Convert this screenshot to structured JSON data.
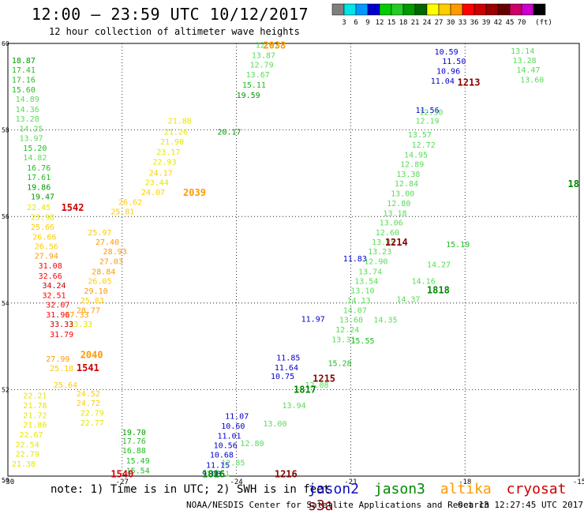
{
  "header": {
    "title": "12:00 – 23:59 UTC 10/12/2017",
    "subtitle": "12 hour collection of altimeter wave heights"
  },
  "colorbar": {
    "colors": [
      "#7f7f7f",
      "#00e5e5",
      "#0099ff",
      "#0000cc",
      "#00cc00",
      "#22cc22",
      "#009900",
      "#006600",
      "#ffff00",
      "#ffcc00",
      "#ff9900",
      "#ff0000",
      "#cc0000",
      "#990000",
      "#660000",
      "#cc0066",
      "#cc00cc",
      "#000000"
    ],
    "labels": [
      "3",
      "6",
      "9",
      "12",
      "15",
      "18",
      "21",
      "24",
      "27",
      "30",
      "33",
      "36",
      "39",
      "42",
      "45",
      "70"
    ],
    "unit": "(ft)"
  },
  "footer": {
    "note": "note: 1) Time is in UTC; 2) SWH is in feet",
    "credit": "NOAA/NESDIS Center for Satellite Applications and Research",
    "timestamp": "Oct 13 12:27:45 UTC 2017"
  },
  "legend": [
    {
      "name": "jason2",
      "color": "#1010c0"
    },
    {
      "name": "jason3",
      "color": "#008800"
    },
    {
      "name": "altika",
      "color": "#ff9900"
    },
    {
      "name": "cryosat",
      "color": "#cc0000"
    },
    {
      "name": "s3a",
      "color": "#880000"
    }
  ],
  "chart_data": {
    "type": "scatter",
    "title": "12:00 – 23:59 UTC 10/12/2017",
    "subtitle": "12 hour collection of altimeter wave heights",
    "xlim": [
      -30,
      -15
    ],
    "ylim": [
      50,
      60
    ],
    "xticks": [
      "-30",
      "-27",
      "-24",
      "-21",
      "-18",
      "-15"
    ],
    "yticks": [
      "50",
      "52",
      "54",
      "56",
      "58",
      "60"
    ],
    "grid": true,
    "series": [
      {
        "name": "jason2",
        "color": "#1010c0",
        "points": [
          {
            "x": -24.9,
            "y": 50.05,
            "v": "9.08"
          },
          {
            "x": -24.8,
            "y": 50.25,
            "v": "11.15"
          },
          {
            "x": -24.7,
            "y": 50.48,
            "v": "10.68"
          },
          {
            "x": -24.6,
            "y": 50.7,
            "v": "10.56"
          },
          {
            "x": -24.5,
            "y": 50.92,
            "v": "11.01"
          },
          {
            "x": -24.4,
            "y": 51.15,
            "v": "10.60"
          },
          {
            "x": -24.3,
            "y": 51.38,
            "v": "11.07"
          },
          {
            "x": -23.1,
            "y": 52.3,
            "v": "10.75"
          },
          {
            "x": -23.0,
            "y": 52.5,
            "v": "11.64"
          },
          {
            "x": -22.95,
            "y": 52.73,
            "v": "11.85"
          },
          {
            "x": -22.3,
            "y": 53.62,
            "v": "11.97"
          },
          {
            "x": -21.2,
            "y": 55.02,
            "v": "11.83"
          },
          {
            "x": -18.8,
            "y": 59.8,
            "v": "10.59"
          },
          {
            "x": -18.6,
            "y": 59.58,
            "v": "11.50"
          },
          {
            "x": -18.75,
            "y": 59.35,
            "v": "10.96"
          },
          {
            "x": -18.9,
            "y": 59.12,
            "v": "11.04"
          },
          {
            "x": -19.3,
            "y": 58.45,
            "v": "11.56"
          }
        ]
      },
      {
        "name": "jason3",
        "color": "#22cc22",
        "points": [
          {
            "x": -29.9,
            "y": 59.6,
            "v": "18.87"
          },
          {
            "x": -29.9,
            "y": 59.38,
            "v": "17.41"
          },
          {
            "x": -29.9,
            "y": 59.15,
            "v": "17.16"
          },
          {
            "x": -29.9,
            "y": 58.92,
            "v": "15.60"
          },
          {
            "x": -29.8,
            "y": 58.7,
            "v": "14.89"
          },
          {
            "x": -29.8,
            "y": 58.47,
            "v": "14.36"
          },
          {
            "x": -29.8,
            "y": 58.25,
            "v": "13.28"
          },
          {
            "x": -29.7,
            "y": 58.02,
            "v": "14.25"
          },
          {
            "x": -29.7,
            "y": 57.8,
            "v": "13.97"
          },
          {
            "x": -29.6,
            "y": 57.57,
            "v": "15.20"
          },
          {
            "x": -29.6,
            "y": 57.35,
            "v": "14.82"
          },
          {
            "x": -29.5,
            "y": 57.12,
            "v": "16.76"
          },
          {
            "x": -29.5,
            "y": 56.9,
            "v": "17.61"
          },
          {
            "x": -29.5,
            "y": 56.67,
            "v": "19.86"
          },
          {
            "x": -29.4,
            "y": 56.45,
            "v": "19.47"
          },
          {
            "x": -23.5,
            "y": 59.95,
            "v": "12.97"
          },
          {
            "x": -23.6,
            "y": 59.72,
            "v": "13.87"
          },
          {
            "x": -23.65,
            "y": 59.5,
            "v": "12.79"
          },
          {
            "x": -23.75,
            "y": 59.27,
            "v": "13.67"
          },
          {
            "x": -23.85,
            "y": 59.03,
            "v": "15.11"
          },
          {
            "x": -24.0,
            "y": 58.8,
            "v": "19.59"
          },
          {
            "x": -24.5,
            "y": 57.95,
            "v": "20.17"
          },
          {
            "x": -27.0,
            "y": 51.0,
            "v": "19.70"
          },
          {
            "x": -27.0,
            "y": 50.8,
            "v": "17.76"
          },
          {
            "x": -27.0,
            "y": 50.58,
            "v": "16.88"
          },
          {
            "x": -26.9,
            "y": 50.35,
            "v": "15.49"
          },
          {
            "x": -26.9,
            "y": 50.12,
            "v": "15.54"
          },
          {
            "x": -19.5,
            "y": 57.88,
            "v": "13.57"
          },
          {
            "x": -19.4,
            "y": 57.65,
            "v": "12.72"
          },
          {
            "x": -19.3,
            "y": 58.2,
            "v": "12.19"
          },
          {
            "x": -19.2,
            "y": 58.4,
            "v": "12.30"
          },
          {
            "x": -19.6,
            "y": 57.42,
            "v": "14.95"
          },
          {
            "x": -19.7,
            "y": 57.2,
            "v": "12.89"
          },
          {
            "x": -19.8,
            "y": 56.97,
            "v": "13.38"
          },
          {
            "x": -19.85,
            "y": 56.75,
            "v": "12.84"
          },
          {
            "x": -19.95,
            "y": 56.52,
            "v": "13.00"
          },
          {
            "x": -20.05,
            "y": 56.3,
            "v": "12.80"
          },
          {
            "x": -20.15,
            "y": 56.07,
            "v": "13.18"
          },
          {
            "x": -20.25,
            "y": 55.85,
            "v": "13.06"
          },
          {
            "x": -20.35,
            "y": 55.62,
            "v": "12.60"
          },
          {
            "x": -20.45,
            "y": 55.4,
            "v": "13.85"
          },
          {
            "x": -20.55,
            "y": 55.18,
            "v": "13.23"
          },
          {
            "x": -20.65,
            "y": 54.95,
            "v": "12.90"
          },
          {
            "x": -20.8,
            "y": 54.72,
            "v": "13.74"
          },
          {
            "x": -20.9,
            "y": 54.5,
            "v": "13.54"
          },
          {
            "x": -21.0,
            "y": 54.28,
            "v": "13.10"
          },
          {
            "x": -21.1,
            "y": 54.05,
            "v": "14.13"
          },
          {
            "x": -21.2,
            "y": 53.82,
            "v": "14.07"
          },
          {
            "x": -21.3,
            "y": 53.6,
            "v": "13.60"
          },
          {
            "x": -21.4,
            "y": 53.38,
            "v": "12.24"
          },
          {
            "x": -21.5,
            "y": 53.15,
            "v": "13.31"
          },
          {
            "x": -16.8,
            "y": 59.82,
            "v": "13.14"
          },
          {
            "x": -16.75,
            "y": 59.6,
            "v": "13.28"
          },
          {
            "x": -16.65,
            "y": 59.38,
            "v": "14.47"
          },
          {
            "x": -16.55,
            "y": 59.15,
            "v": "13.60"
          },
          {
            "x": -18.5,
            "y": 55.35,
            "v": "15.19"
          },
          {
            "x": -19.0,
            "y": 54.88,
            "v": "14.27"
          },
          {
            "x": -19.4,
            "y": 54.5,
            "v": "14.16"
          },
          {
            "x": -19.8,
            "y": 54.08,
            "v": "14.37"
          },
          {
            "x": -20.4,
            "y": 53.6,
            "v": "14.35"
          },
          {
            "x": -21.0,
            "y": 53.12,
            "v": "15.55"
          },
          {
            "x": -21.6,
            "y": 52.6,
            "v": "15.28"
          },
          {
            "x": -22.2,
            "y": 52.1,
            "v": "12.08"
          },
          {
            "x": -22.8,
            "y": 51.62,
            "v": "13.94"
          },
          {
            "x": -23.3,
            "y": 51.2,
            "v": "13.00"
          },
          {
            "x": -23.9,
            "y": 50.75,
            "v": "12.80"
          },
          {
            "x": -24.4,
            "y": 50.3,
            "v": "12.85"
          },
          {
            "x": -24.8,
            "y": 50.05,
            "v": "13.51"
          }
        ]
      },
      {
        "name": "altika",
        "color": "#ff9900",
        "points": [
          {
            "x": -29.5,
            "y": 56.2,
            "v": "22.45"
          },
          {
            "x": -29.4,
            "y": 55.98,
            "v": "23.98"
          },
          {
            "x": -29.4,
            "y": 55.75,
            "v": "25.66"
          },
          {
            "x": -29.35,
            "y": 55.52,
            "v": "26.66"
          },
          {
            "x": -29.3,
            "y": 55.3,
            "v": "26.56"
          },
          {
            "x": -29.3,
            "y": 55.08,
            "v": "27.94"
          },
          {
            "x": -28.5,
            "y": 53.72,
            "v": "27.33"
          },
          {
            "x": -28.4,
            "y": 53.5,
            "v": "23.33"
          },
          {
            "x": -29.0,
            "y": 52.7,
            "v": "27.99"
          },
          {
            "x": -28.9,
            "y": 52.48,
            "v": "25.18"
          },
          {
            "x": -29.6,
            "y": 51.85,
            "v": "22.21"
          },
          {
            "x": -29.6,
            "y": 51.62,
            "v": "21.78"
          },
          {
            "x": -29.6,
            "y": 51.4,
            "v": "21.72"
          },
          {
            "x": -29.6,
            "y": 51.18,
            "v": "21.86"
          },
          {
            "x": -29.7,
            "y": 50.95,
            "v": "22.67"
          },
          {
            "x": -29.8,
            "y": 50.72,
            "v": "22.54"
          },
          {
            "x": -29.8,
            "y": 50.5,
            "v": "22.79"
          },
          {
            "x": -29.9,
            "y": 50.27,
            "v": "21.38"
          },
          {
            "x": -28.2,
            "y": 51.9,
            "v": "24.52"
          },
          {
            "x": -28.2,
            "y": 51.68,
            "v": "24.72"
          },
          {
            "x": -28.1,
            "y": 51.45,
            "v": "22.79"
          },
          {
            "x": -28.1,
            "y": 51.22,
            "v": "22.77"
          },
          {
            "x": -28.8,
            "y": 52.1,
            "v": "25.64"
          },
          {
            "x": -25.8,
            "y": 58.2,
            "v": "21.80"
          },
          {
            "x": -25.9,
            "y": 57.95,
            "v": "21.26"
          },
          {
            "x": -26.0,
            "y": 57.72,
            "v": "21.90"
          },
          {
            "x": -26.1,
            "y": 57.48,
            "v": "23.17"
          },
          {
            "x": -26.2,
            "y": 57.25,
            "v": "22.93"
          },
          {
            "x": -26.3,
            "y": 57.0,
            "v": "24.17"
          },
          {
            "x": -26.4,
            "y": 56.78,
            "v": "23.44"
          },
          {
            "x": -26.5,
            "y": 56.55,
            "v": "24.07"
          },
          {
            "x": -27.1,
            "y": 56.32,
            "v": "26.62"
          },
          {
            "x": -27.3,
            "y": 56.1,
            "v": "25.81"
          },
          {
            "x": -27.9,
            "y": 55.62,
            "v": "25.97"
          },
          {
            "x": -27.7,
            "y": 55.4,
            "v": "27.40"
          },
          {
            "x": -27.5,
            "y": 55.18,
            "v": "28.93"
          },
          {
            "x": -27.6,
            "y": 54.95,
            "v": "27.03"
          },
          {
            "x": -27.8,
            "y": 54.72,
            "v": "28.84"
          },
          {
            "x": -27.9,
            "y": 54.5,
            "v": "26.05"
          },
          {
            "x": -28.0,
            "y": 54.27,
            "v": "29.10"
          },
          {
            "x": -28.1,
            "y": 54.05,
            "v": "25.83"
          },
          {
            "x": -28.2,
            "y": 53.82,
            "v": "28.77"
          }
        ]
      },
      {
        "name": "cryosat",
        "color": "#cc0000",
        "points": [
          {
            "x": -29.2,
            "y": 54.85,
            "v": "31.08"
          },
          {
            "x": -29.2,
            "y": 54.62,
            "v": "32.66"
          },
          {
            "x": -29.1,
            "y": 54.4,
            "v": "34.24"
          },
          {
            "x": -29.1,
            "y": 54.17,
            "v": "32.51"
          },
          {
            "x": -29.0,
            "y": 53.95,
            "v": "32.07"
          },
          {
            "x": -29.0,
            "y": 53.72,
            "v": "31.96"
          },
          {
            "x": -28.9,
            "y": 53.5,
            "v": "33.33"
          },
          {
            "x": -28.9,
            "y": 53.27,
            "v": "31.79"
          }
        ]
      },
      {
        "name": "s3a",
        "color": "#880000",
        "points": []
      }
    ],
    "annotations": [
      {
        "text": "2038",
        "x": -23.3,
        "y": 59.95,
        "color": "#ff9900"
      },
      {
        "text": "1542",
        "x": -28.6,
        "y": 56.2,
        "color": "#cc0000"
      },
      {
        "text": "2039",
        "x": -25.4,
        "y": 56.55,
        "color": "#ff9900"
      },
      {
        "text": "2040",
        "x": -28.1,
        "y": 52.8,
        "color": "#ff9900"
      },
      {
        "text": "1541",
        "x": -28.2,
        "y": 52.5,
        "color": "#cc0000"
      },
      {
        "text": "1540",
        "x": -27.3,
        "y": 50.05,
        "color": "#cc0000"
      },
      {
        "text": "1816",
        "x": -24.9,
        "y": 50.05,
        "color": "#008800"
      },
      {
        "text": "1216",
        "x": -23.0,
        "y": 50.05,
        "color": "#880000"
      },
      {
        "text": "1215",
        "x": -22.0,
        "y": 52.25,
        "color": "#880000"
      },
      {
        "text": "1817",
        "x": -22.5,
        "y": 52.0,
        "color": "#008800"
      },
      {
        "text": "1214",
        "x": -20.1,
        "y": 55.4,
        "color": "#880000"
      },
      {
        "text": "1818",
        "x": -19.0,
        "y": 54.3,
        "color": "#008800"
      },
      {
        "text": "1213",
        "x": -18.2,
        "y": 59.1,
        "color": "#880000"
      },
      {
        "text": "18",
        "x": -15.3,
        "y": 56.75,
        "color": "#008800"
      }
    ]
  }
}
